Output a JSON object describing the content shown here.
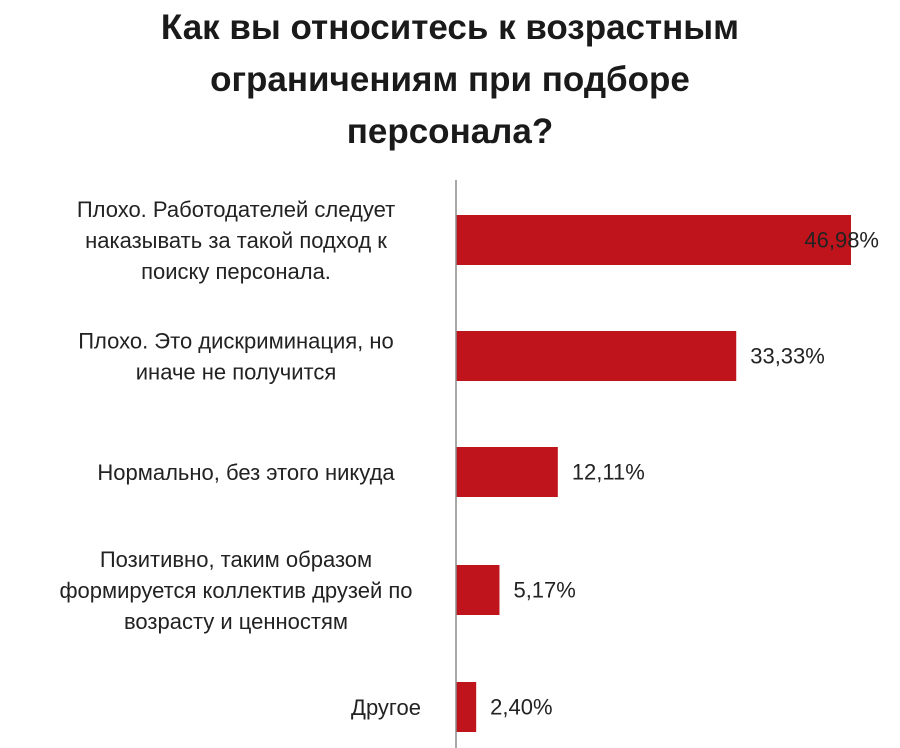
{
  "chart_data": {
    "type": "bar",
    "orientation": "horizontal",
    "title": "Как вы относитесь к возрастным ограничениям при подборе персонала?",
    "categories": [
      "Плохо. Работодателей следует наказывать за такой подход к поиску персонала.",
      "Плохо.  Это дискриминация, но иначе не получится",
      "Нормально, без этого никуда",
      "Позитивно, таким образом формируется коллектив друзей по возрасту и ценностям",
      "Другое"
    ],
    "category_lines": [
      [
        "Плохо. Работодателей следует",
        "наказывать за такой подход к",
        "поиску персонала."
      ],
      [
        "Плохо.  Это дискриминация, но",
        "иначе не получится"
      ],
      [
        "Нормально, без этого никуда"
      ],
      [
        "Позитивно, таким образом",
        "формируется коллектив друзей по",
        "возрасту и ценностям"
      ],
      [
        "Другое"
      ]
    ],
    "values": [
      46.98,
      33.33,
      12.11,
      5.17,
      2.4
    ],
    "value_labels": [
      "46,98%",
      "33,33%",
      "12,11%",
      "5,17%",
      "2,40%"
    ],
    "xlim": [
      0,
      50
    ],
    "xlabel": "",
    "ylabel": "",
    "grid": false,
    "legend": "none",
    "bar_color": "#c0141c",
    "axis_color": "#8c8c8c"
  }
}
